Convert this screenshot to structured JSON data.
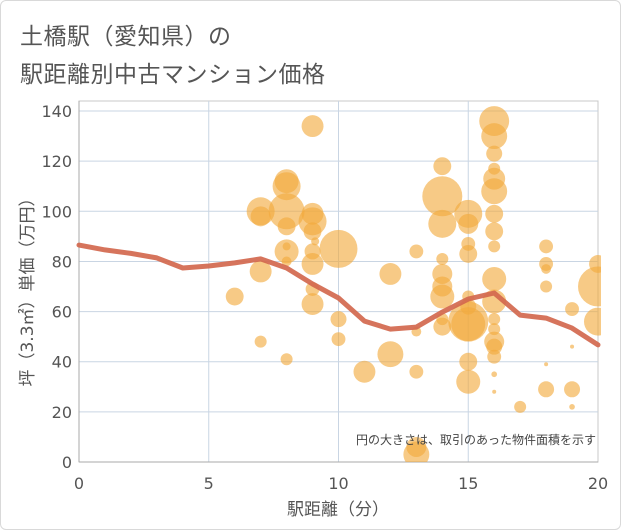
{
  "title_lines": [
    "土橋駅（愛知県）の",
    "駅距離別中古マンション価格"
  ],
  "chart_data": {
    "type": "scatter",
    "xlabel": "駅距離（分）",
    "ylabel": "坪（3.3㎡）単価（万円）",
    "xlim": [
      0,
      20
    ],
    "ylim": [
      0,
      144
    ],
    "x_ticks": [
      0,
      5,
      10,
      15,
      20
    ],
    "y_ticks": [
      0,
      20,
      40,
      60,
      80,
      100,
      120,
      140
    ],
    "grid": true,
    "note": "円の大きさは、取引のあった物件面積を示す",
    "colors": {
      "bubble": "#f2a93b",
      "line": "#d3684e",
      "grid": "#c9d5e3",
      "frame": "#c8c8c8"
    },
    "bubbles": {
      "fields": [
        "x",
        "y",
        "relative_area"
      ],
      "points": [
        [
          6,
          66,
          20
        ],
        [
          7,
          100,
          49
        ],
        [
          7,
          98,
          25
        ],
        [
          7,
          76,
          30
        ],
        [
          7,
          48,
          9
        ],
        [
          8,
          112,
          36
        ],
        [
          8,
          110,
          49
        ],
        [
          8,
          100,
          81
        ],
        [
          8,
          94,
          20
        ],
        [
          8,
          84,
          36
        ],
        [
          8,
          86,
          4
        ],
        [
          8,
          80,
          6
        ],
        [
          8,
          41,
          9
        ],
        [
          9,
          134,
          30
        ],
        [
          9,
          99,
          30
        ],
        [
          9,
          96,
          49
        ],
        [
          9,
          92,
          20
        ],
        [
          9,
          84,
          16
        ],
        [
          9,
          79,
          30
        ],
        [
          9,
          69,
          12
        ],
        [
          9,
          63,
          30
        ],
        [
          9.1,
          88,
          4
        ],
        [
          10,
          85,
          90
        ],
        [
          10,
          57,
          16
        ],
        [
          10,
          49,
          12
        ],
        [
          11,
          36,
          30
        ],
        [
          12,
          75,
          30
        ],
        [
          12,
          43,
          42
        ],
        [
          13,
          84,
          12
        ],
        [
          13,
          36,
          12
        ],
        [
          13,
          3,
          42
        ],
        [
          13,
          6,
          25
        ],
        [
          13,
          52,
          6
        ],
        [
          14,
          118,
          20
        ],
        [
          14,
          106,
          100
        ],
        [
          14,
          95,
          49
        ],
        [
          14,
          81,
          9
        ],
        [
          14,
          75,
          25
        ],
        [
          14,
          70,
          25
        ],
        [
          14,
          66,
          36
        ],
        [
          14,
          54,
          20
        ],
        [
          14,
          57,
          9
        ],
        [
          15,
          99,
          49
        ],
        [
          15,
          95,
          25
        ],
        [
          15,
          87,
          12
        ],
        [
          15,
          83,
          20
        ],
        [
          15,
          66,
          9
        ],
        [
          15,
          62,
          16
        ],
        [
          15,
          56,
          100
        ],
        [
          15,
          55,
          72
        ],
        [
          15,
          40,
          20
        ],
        [
          15,
          32,
          36
        ],
        [
          16,
          136,
          56
        ],
        [
          16,
          130,
          42
        ],
        [
          16,
          123,
          16
        ],
        [
          16,
          117,
          9
        ],
        [
          16,
          113,
          30
        ],
        [
          16,
          108,
          42
        ],
        [
          16,
          99,
          20
        ],
        [
          16,
          92,
          20
        ],
        [
          16,
          86,
          9
        ],
        [
          16,
          73,
          36
        ],
        [
          16,
          64,
          36
        ],
        [
          16,
          57,
          9
        ],
        [
          16,
          53,
          9
        ],
        [
          16,
          48,
          25
        ],
        [
          16,
          46,
          16
        ],
        [
          16,
          42,
          12
        ],
        [
          16,
          35,
          2
        ],
        [
          16,
          28,
          1
        ],
        [
          17,
          22,
          9
        ],
        [
          18,
          86,
          12
        ],
        [
          18,
          79,
          12
        ],
        [
          18,
          77,
          6
        ],
        [
          18,
          70,
          9
        ],
        [
          18,
          39,
          1
        ],
        [
          18,
          29,
          16
        ],
        [
          19,
          61,
          12
        ],
        [
          19,
          46,
          1
        ],
        [
          19,
          29,
          16
        ],
        [
          19,
          22,
          2
        ],
        [
          20,
          79,
          20
        ],
        [
          20,
          70,
          100
        ],
        [
          20,
          56,
          49
        ]
      ]
    },
    "line": {
      "x": [
        0,
        1,
        2,
        3,
        4,
        5,
        6,
        7,
        8,
        9,
        10,
        11,
        12,
        13,
        14,
        15,
        16,
        17,
        18,
        19,
        20
      ],
      "y": [
        86.5,
        84.6,
        83.2,
        81.4,
        77.4,
        78.2,
        79.4,
        81.0,
        77.4,
        71.0,
        65.4,
        56.2,
        53.0,
        53.8,
        59.8,
        65.0,
        67.4,
        58.6,
        57.4,
        53.4,
        46.7
      ]
    }
  }
}
